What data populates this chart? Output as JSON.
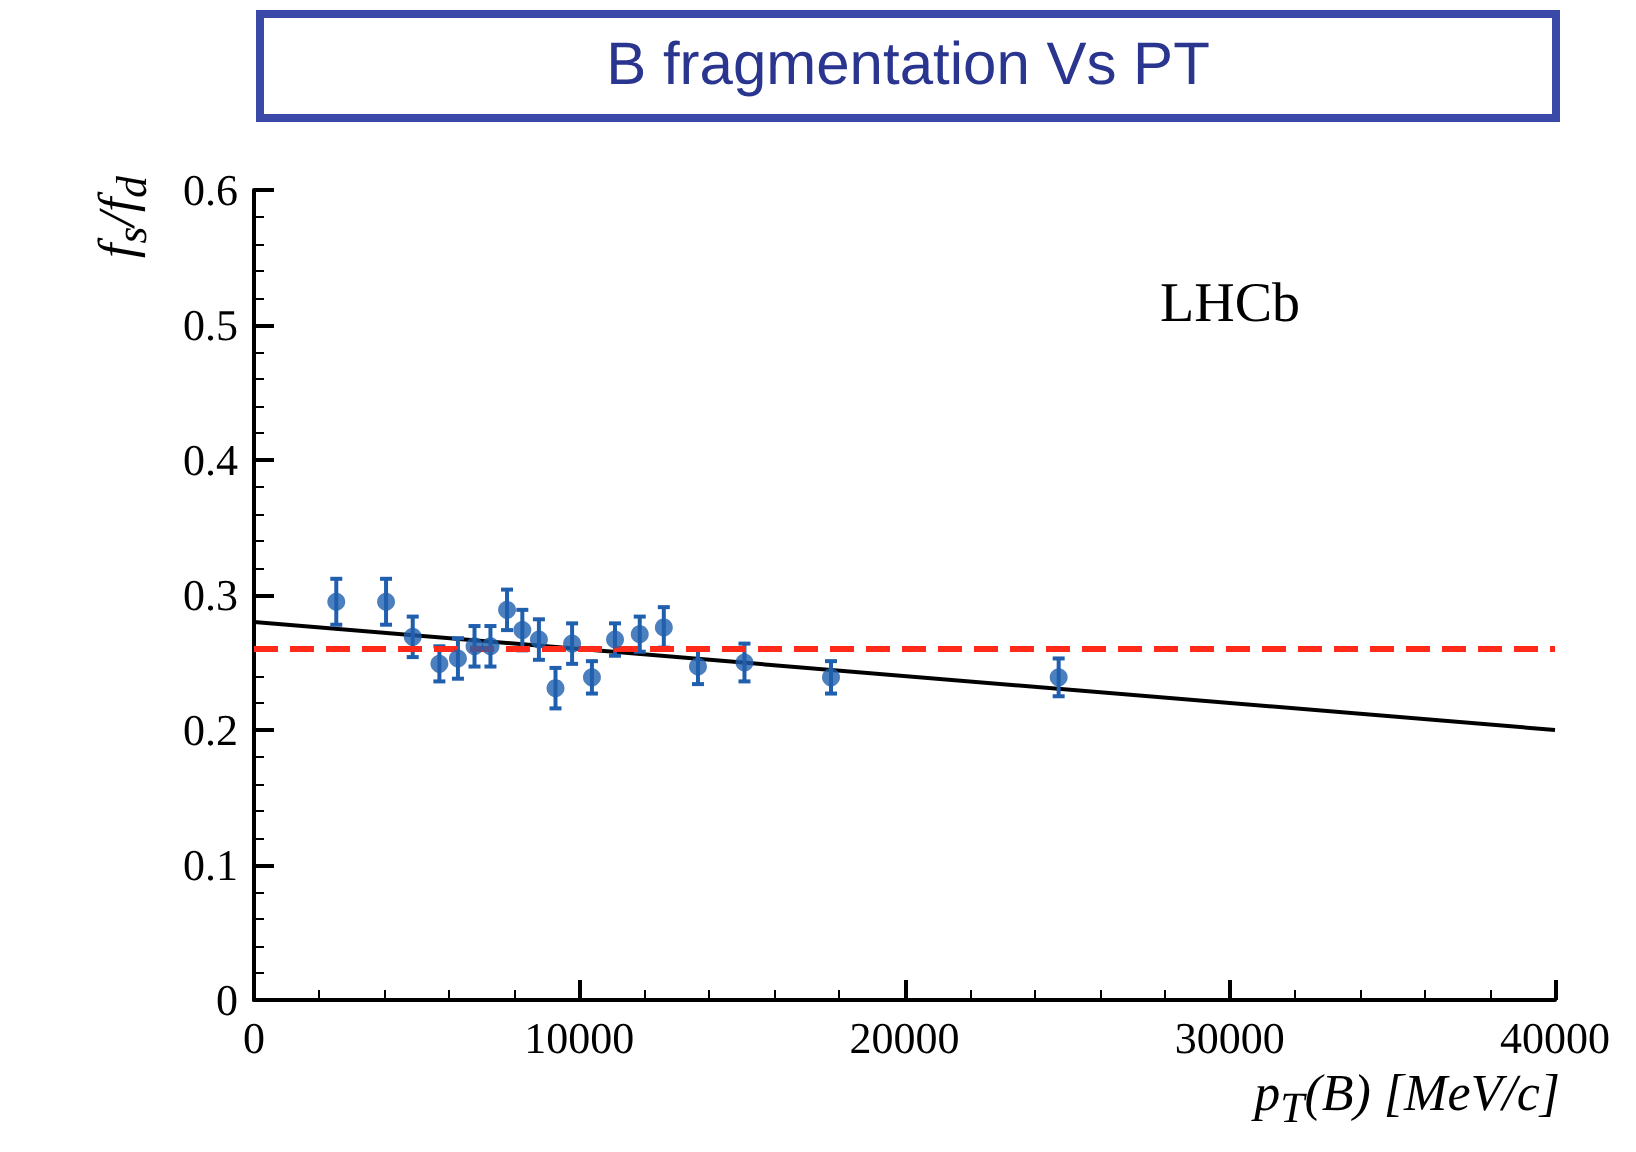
{
  "chart_data": {
    "type": "scatter",
    "title": "B fragmentation Vs PT",
    "xlabel": "p$_{T}$(B) [MeV/c]",
    "ylabel": "f$_{s}$/f$_{d}$",
    "annotations": [
      "LHCb"
    ],
    "xlim": [
      0,
      40000
    ],
    "xticks": [
      0,
      10000,
      20000,
      30000,
      40000
    ],
    "ylim": [
      0,
      0.6
    ],
    "yticks": [
      0,
      0.1,
      0.2,
      0.3,
      0.4,
      0.5,
      0.6
    ],
    "grid": false,
    "marker": "circle",
    "series": [
      {
        "color": "#1f5fae",
        "x": [
          2530,
          4060,
          4880,
          5700,
          6270,
          6780,
          7270,
          7780,
          8250,
          8760,
          9270,
          9780,
          10390,
          11100,
          11860,
          12600,
          13650,
          15080,
          17740,
          24740
        ],
        "values": [
          0.295,
          0.295,
          0.269,
          0.249,
          0.253,
          0.262,
          0.262,
          0.289,
          0.274,
          0.267,
          0.231,
          0.264,
          0.239,
          0.267,
          0.271,
          0.276,
          0.247,
          0.25,
          0.239,
          0.239
        ],
        "errors": [
          0.017,
          0.017,
          0.015,
          0.013,
          0.015,
          0.015,
          0.015,
          0.015,
          0.015,
          0.015,
          0.015,
          0.015,
          0.012,
          0.012,
          0.013,
          0.015,
          0.013,
          0.014,
          0.012,
          0.014
        ]
      },
      {
        "type": "line",
        "color": "#000000",
        "x": [
          0,
          40000
        ],
        "values": [
          0.28,
          0.2
        ],
        "marker": "none",
        "line_style": "solid"
      }
    ],
    "ref_lines": [
      {
        "axis": "y",
        "value": 0.26,
        "color": "#ff2a1a",
        "line_style": "dashed"
      }
    ]
  }
}
